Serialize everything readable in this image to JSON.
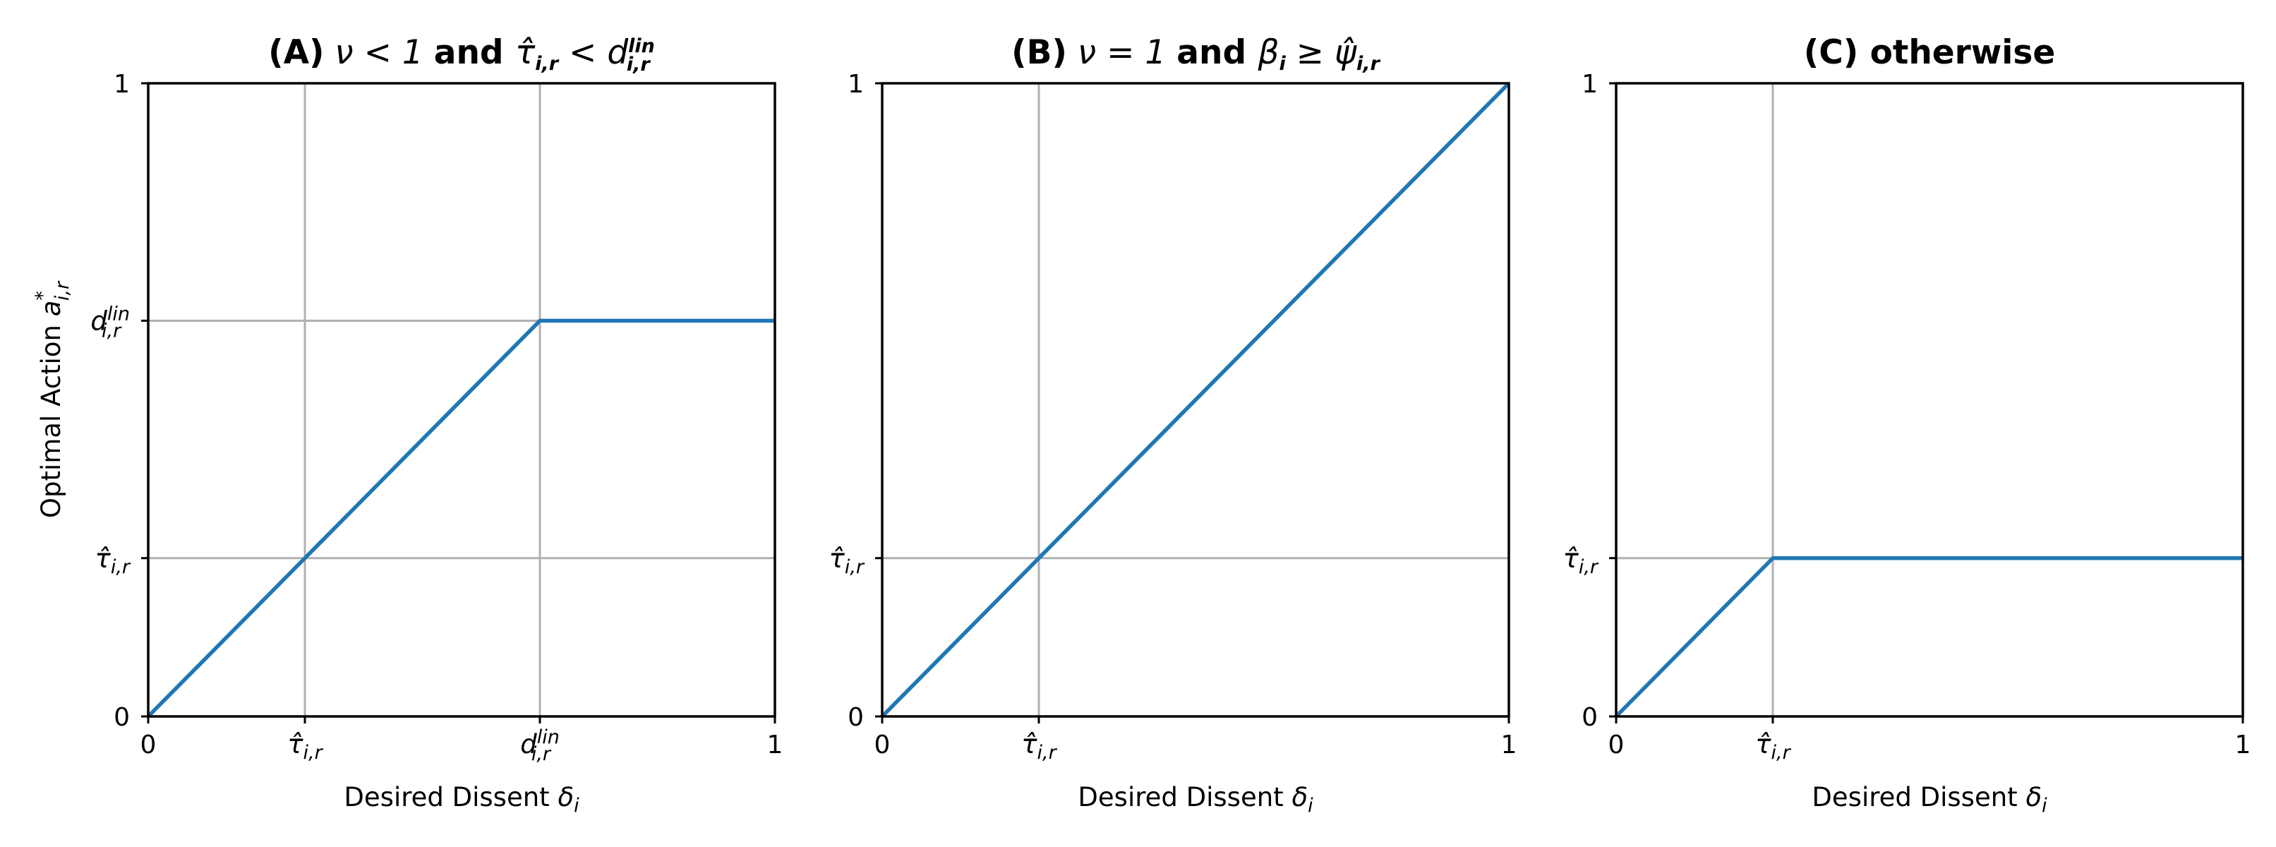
{
  "figure": {
    "line_color": "#1f77b4",
    "grid": true
  },
  "chart_data": [
    {
      "type": "line",
      "panel": "A",
      "title_prefix": "(A)",
      "title_math": "ν < 1",
      "title_connector": "and",
      "title_math2": "τ̂i,r < d lin i,r",
      "xlabel": "Desired Dissent δi",
      "ylabel": "Optimal Action a*i,r",
      "xlim": [
        0,
        1
      ],
      "ylim": [
        0,
        1
      ],
      "xticks": [
        {
          "value": 0,
          "label": "0"
        },
        {
          "value": 0.25,
          "label": "τ̂i,r"
        },
        {
          "value": 0.625,
          "label": "d lin i,r"
        },
        {
          "value": 1,
          "label": "1"
        }
      ],
      "yticks": [
        {
          "value": 0,
          "label": "0"
        },
        {
          "value": 0.25,
          "label": "τ̂i,r"
        },
        {
          "value": 0.625,
          "label": "d lin i,r"
        },
        {
          "value": 1,
          "label": "1"
        }
      ],
      "series": [
        {
          "x": [
            0,
            0.625,
            1
          ],
          "y": [
            0,
            0.625,
            0.625
          ]
        }
      ]
    },
    {
      "type": "line",
      "panel": "B",
      "title_prefix": "(B)",
      "title_math": "ν = 1",
      "title_connector": "and",
      "title_math2": "βi ≥ ψ̂i,r",
      "xlabel": "Desired Dissent δi",
      "ylabel": "",
      "xlim": [
        0,
        1
      ],
      "ylim": [
        0,
        1
      ],
      "xticks": [
        {
          "value": 0,
          "label": "0"
        },
        {
          "value": 0.25,
          "label": "τ̂i,r"
        },
        {
          "value": 1,
          "label": "1"
        }
      ],
      "yticks": [
        {
          "value": 0,
          "label": "0"
        },
        {
          "value": 0.25,
          "label": "τ̂i,r"
        },
        {
          "value": 1,
          "label": "1"
        }
      ],
      "series": [
        {
          "x": [
            0,
            1
          ],
          "y": [
            0,
            1
          ]
        }
      ]
    },
    {
      "type": "line",
      "panel": "C",
      "title_prefix": "(C) otherwise",
      "title_math": "",
      "title_connector": "",
      "title_math2": "",
      "xlabel": "Desired Dissent δi",
      "ylabel": "",
      "xlim": [
        0,
        1
      ],
      "ylim": [
        0,
        1
      ],
      "xticks": [
        {
          "value": 0,
          "label": "0"
        },
        {
          "value": 0.25,
          "label": "τ̂i,r"
        },
        {
          "value": 1,
          "label": "1"
        }
      ],
      "yticks": [
        {
          "value": 0,
          "label": "0"
        },
        {
          "value": 0.25,
          "label": "τ̂i,r"
        },
        {
          "value": 1,
          "label": "1"
        }
      ],
      "series": [
        {
          "x": [
            0,
            0.25,
            1
          ],
          "y": [
            0,
            0.25,
            0.25
          ]
        }
      ]
    }
  ]
}
